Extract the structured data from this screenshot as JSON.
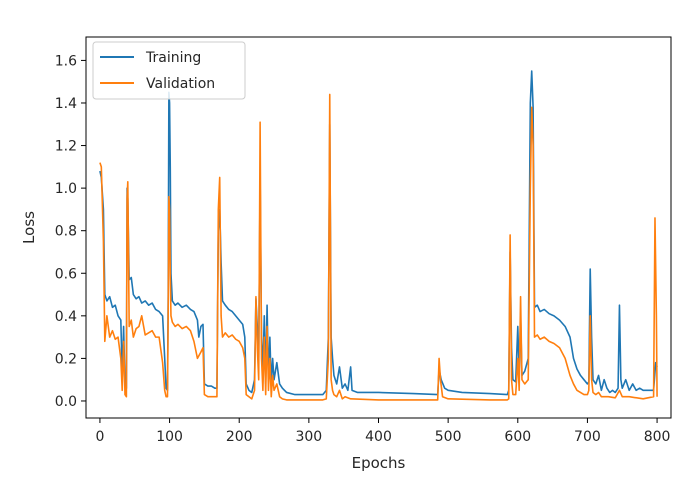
{
  "chart_data": {
    "type": "line",
    "title": "",
    "xlabel": "Epochs",
    "ylabel": "Loss",
    "xlim": [
      -20,
      820
    ],
    "ylim": [
      -0.08,
      1.71
    ],
    "xticks": [
      0,
      100,
      200,
      300,
      400,
      500,
      600,
      700,
      800
    ],
    "xtick_labels": [
      "0",
      "100",
      "200",
      "300",
      "400",
      "500",
      "600",
      "700",
      "800"
    ],
    "yticks": [
      0.0,
      0.2,
      0.4,
      0.6,
      0.8,
      1.0,
      1.2,
      1.4,
      1.6
    ],
    "ytick_labels": [
      "0.0",
      "0.2",
      "0.4",
      "0.6",
      "0.8",
      "1.0",
      "1.2",
      "1.4",
      "1.6"
    ],
    "grid": false,
    "legend_position": "top-left",
    "series": [
      {
        "name": "Training",
        "color": "#1f77b4",
        "points": [
          [
            0,
            1.08
          ],
          [
            2,
            1.05
          ],
          [
            5,
            0.9
          ],
          [
            7,
            0.5
          ],
          [
            10,
            0.47
          ],
          [
            14,
            0.49
          ],
          [
            18,
            0.44
          ],
          [
            22,
            0.45
          ],
          [
            26,
            0.4
          ],
          [
            30,
            0.38
          ],
          [
            32,
            0.12
          ],
          [
            34,
            0.35
          ],
          [
            36,
            0.07
          ],
          [
            38,
            0.06
          ],
          [
            39,
            1.0
          ],
          [
            40,
            0.95
          ],
          [
            42,
            0.57
          ],
          [
            45,
            0.58
          ],
          [
            48,
            0.5
          ],
          [
            52,
            0.48
          ],
          [
            56,
            0.49
          ],
          [
            60,
            0.46
          ],
          [
            65,
            0.47
          ],
          [
            70,
            0.45
          ],
          [
            75,
            0.46
          ],
          [
            80,
            0.43
          ],
          [
            85,
            0.42
          ],
          [
            90,
            0.4
          ],
          [
            93,
            0.2
          ],
          [
            95,
            0.06
          ],
          [
            97,
            0.05
          ],
          [
            98,
            0.5
          ],
          [
            99,
            1.45
          ],
          [
            100,
            1.4
          ],
          [
            101,
            1.1
          ],
          [
            102,
            0.6
          ],
          [
            104,
            0.47
          ],
          [
            108,
            0.45
          ],
          [
            112,
            0.46
          ],
          [
            118,
            0.44
          ],
          [
            124,
            0.45
          ],
          [
            130,
            0.43
          ],
          [
            135,
            0.42
          ],
          [
            140,
            0.38
          ],
          [
            142,
            0.3
          ],
          [
            145,
            0.35
          ],
          [
            148,
            0.36
          ],
          [
            150,
            0.08
          ],
          [
            155,
            0.07
          ],
          [
            160,
            0.07
          ],
          [
            165,
            0.06
          ],
          [
            168,
            0.06
          ],
          [
            170,
            0.8
          ],
          [
            172,
            0.9
          ],
          [
            174,
            0.65
          ],
          [
            176,
            0.47
          ],
          [
            180,
            0.45
          ],
          [
            185,
            0.43
          ],
          [
            190,
            0.42
          ],
          [
            195,
            0.4
          ],
          [
            200,
            0.38
          ],
          [
            205,
            0.36
          ],
          [
            208,
            0.3
          ],
          [
            210,
            0.08
          ],
          [
            214,
            0.05
          ],
          [
            218,
            0.04
          ],
          [
            222,
            0.1
          ],
          [
            224,
            0.48
          ],
          [
            226,
            0.35
          ],
          [
            228,
            0.2
          ],
          [
            230,
            1.05
          ],
          [
            232,
            0.3
          ],
          [
            234,
            0.15
          ],
          [
            236,
            0.4
          ],
          [
            238,
            0.08
          ],
          [
            240,
            0.45
          ],
          [
            242,
            0.1
          ],
          [
            244,
            0.3
          ],
          [
            246,
            0.08
          ],
          [
            248,
            0.2
          ],
          [
            250,
            0.1
          ],
          [
            254,
            0.18
          ],
          [
            258,
            0.08
          ],
          [
            262,
            0.06
          ],
          [
            268,
            0.04
          ],
          [
            280,
            0.03
          ],
          [
            300,
            0.03
          ],
          [
            320,
            0.03
          ],
          [
            325,
            0.05
          ],
          [
            328,
            0.3
          ],
          [
            330,
            1.3
          ],
          [
            332,
            0.3
          ],
          [
            334,
            0.2
          ],
          [
            336,
            0.12
          ],
          [
            338,
            0.1
          ],
          [
            340,
            0.08
          ],
          [
            344,
            0.16
          ],
          [
            348,
            0.06
          ],
          [
            352,
            0.08
          ],
          [
            356,
            0.05
          ],
          [
            360,
            0.16
          ],
          [
            362,
            0.05
          ],
          [
            370,
            0.04
          ],
          [
            400,
            0.04
          ],
          [
            450,
            0.035
          ],
          [
            485,
            0.03
          ],
          [
            487,
            0.15
          ],
          [
            490,
            0.1
          ],
          [
            495,
            0.06
          ],
          [
            500,
            0.05
          ],
          [
            520,
            0.04
          ],
          [
            560,
            0.035
          ],
          [
            585,
            0.03
          ],
          [
            587,
            0.05
          ],
          [
            589,
            0.7
          ],
          [
            591,
            0.25
          ],
          [
            593,
            0.1
          ],
          [
            597,
            0.09
          ],
          [
            600,
            0.35
          ],
          [
            602,
            0.12
          ],
          [
            604,
            0.4
          ],
          [
            606,
            0.12
          ],
          [
            610,
            0.14
          ],
          [
            615,
            0.2
          ],
          [
            618,
            1.4
          ],
          [
            620,
            1.55
          ],
          [
            622,
            1.38
          ],
          [
            624,
            0.44
          ],
          [
            628,
            0.45
          ],
          [
            632,
            0.42
          ],
          [
            638,
            0.43
          ],
          [
            645,
            0.41
          ],
          [
            652,
            0.4
          ],
          [
            660,
            0.38
          ],
          [
            668,
            0.35
          ],
          [
            675,
            0.3
          ],
          [
            680,
            0.2
          ],
          [
            685,
            0.15
          ],
          [
            690,
            0.12
          ],
          [
            695,
            0.1
          ],
          [
            700,
            0.08
          ],
          [
            702,
            0.09
          ],
          [
            704,
            0.62
          ],
          [
            706,
            0.3
          ],
          [
            708,
            0.1
          ],
          [
            712,
            0.08
          ],
          [
            716,
            0.12
          ],
          [
            720,
            0.05
          ],
          [
            724,
            0.1
          ],
          [
            728,
            0.06
          ],
          [
            732,
            0.04
          ],
          [
            736,
            0.05
          ],
          [
            740,
            0.04
          ],
          [
            744,
            0.06
          ],
          [
            746,
            0.45
          ],
          [
            748,
            0.1
          ],
          [
            750,
            0.06
          ],
          [
            755,
            0.1
          ],
          [
            760,
            0.05
          ],
          [
            765,
            0.08
          ],
          [
            770,
            0.05
          ],
          [
            775,
            0.06
          ],
          [
            780,
            0.05
          ],
          [
            790,
            0.05
          ],
          [
            795,
            0.05
          ],
          [
            798,
            0.18
          ],
          [
            800,
            0.16
          ]
        ]
      },
      {
        "name": "Validation",
        "color": "#ff7f0e",
        "points": [
          [
            0,
            1.12
          ],
          [
            2,
            1.1
          ],
          [
            5,
            0.75
          ],
          [
            7,
            0.28
          ],
          [
            10,
            0.4
          ],
          [
            14,
            0.3
          ],
          [
            18,
            0.33
          ],
          [
            22,
            0.29
          ],
          [
            26,
            0.3
          ],
          [
            30,
            0.2
          ],
          [
            32,
            0.05
          ],
          [
            34,
            0.28
          ],
          [
            36,
            0.03
          ],
          [
            38,
            0.02
          ],
          [
            39,
            0.95
          ],
          [
            40,
            1.03
          ],
          [
            42,
            0.35
          ],
          [
            45,
            0.38
          ],
          [
            48,
            0.3
          ],
          [
            52,
            0.34
          ],
          [
            56,
            0.35
          ],
          [
            60,
            0.4
          ],
          [
            65,
            0.31
          ],
          [
            70,
            0.32
          ],
          [
            75,
            0.33
          ],
          [
            80,
            0.3
          ],
          [
            85,
            0.3
          ],
          [
            90,
            0.18
          ],
          [
            93,
            0.05
          ],
          [
            95,
            0.02
          ],
          [
            97,
            0.02
          ],
          [
            98,
            0.4
          ],
          [
            99,
            0.96
          ],
          [
            100,
            0.9
          ],
          [
            101,
            0.6
          ],
          [
            102,
            0.4
          ],
          [
            104,
            0.37
          ],
          [
            108,
            0.35
          ],
          [
            112,
            0.36
          ],
          [
            118,
            0.34
          ],
          [
            124,
            0.35
          ],
          [
            130,
            0.33
          ],
          [
            135,
            0.28
          ],
          [
            140,
            0.2
          ],
          [
            145,
            0.23
          ],
          [
            148,
            0.25
          ],
          [
            150,
            0.03
          ],
          [
            155,
            0.02
          ],
          [
            160,
            0.02
          ],
          [
            165,
            0.02
          ],
          [
            168,
            0.02
          ],
          [
            170,
            0.9
          ],
          [
            172,
            1.05
          ],
          [
            174,
            0.4
          ],
          [
            176,
            0.3
          ],
          [
            180,
            0.32
          ],
          [
            185,
            0.3
          ],
          [
            190,
            0.31
          ],
          [
            195,
            0.29
          ],
          [
            200,
            0.28
          ],
          [
            205,
            0.25
          ],
          [
            208,
            0.2
          ],
          [
            210,
            0.03
          ],
          [
            214,
            0.02
          ],
          [
            218,
            0.01
          ],
          [
            222,
            0.05
          ],
          [
            224,
            0.49
          ],
          [
            226,
            0.25
          ],
          [
            228,
            0.1
          ],
          [
            230,
            1.31
          ],
          [
            232,
            0.2
          ],
          [
            234,
            0.05
          ],
          [
            236,
            0.3
          ],
          [
            238,
            0.03
          ],
          [
            240,
            0.35
          ],
          [
            242,
            0.05
          ],
          [
            244,
            0.2
          ],
          [
            246,
            0.02
          ],
          [
            248,
            0.12
          ],
          [
            250,
            0.05
          ],
          [
            254,
            0.08
          ],
          [
            258,
            0.02
          ],
          [
            262,
            0.01
          ],
          [
            268,
            0.005
          ],
          [
            300,
            0.005
          ],
          [
            320,
            0.005
          ],
          [
            325,
            0.01
          ],
          [
            328,
            0.2
          ],
          [
            330,
            1.44
          ],
          [
            332,
            0.1
          ],
          [
            334,
            0.05
          ],
          [
            336,
            0.03
          ],
          [
            340,
            0.02
          ],
          [
            344,
            0.05
          ],
          [
            348,
            0.01
          ],
          [
            352,
            0.02
          ],
          [
            360,
            0.01
          ],
          [
            400,
            0.005
          ],
          [
            485,
            0.005
          ],
          [
            487,
            0.2
          ],
          [
            489,
            0.1
          ],
          [
            492,
            0.02
          ],
          [
            500,
            0.01
          ],
          [
            560,
            0.005
          ],
          [
            585,
            0.005
          ],
          [
            587,
            0.01
          ],
          [
            589,
            0.78
          ],
          [
            591,
            0.1
          ],
          [
            593,
            0.03
          ],
          [
            597,
            0.03
          ],
          [
            600,
            0.2
          ],
          [
            602,
            0.05
          ],
          [
            604,
            0.49
          ],
          [
            606,
            0.1
          ],
          [
            610,
            0.08
          ],
          [
            615,
            0.1
          ],
          [
            618,
            1.0
          ],
          [
            620,
            1.38
          ],
          [
            622,
            1.2
          ],
          [
            624,
            0.3
          ],
          [
            628,
            0.31
          ],
          [
            632,
            0.29
          ],
          [
            638,
            0.3
          ],
          [
            645,
            0.28
          ],
          [
            652,
            0.27
          ],
          [
            660,
            0.25
          ],
          [
            668,
            0.2
          ],
          [
            675,
            0.12
          ],
          [
            680,
            0.08
          ],
          [
            685,
            0.05
          ],
          [
            690,
            0.04
          ],
          [
            695,
            0.03
          ],
          [
            700,
            0.03
          ],
          [
            702,
            0.05
          ],
          [
            704,
            0.4
          ],
          [
            706,
            0.1
          ],
          [
            708,
            0.04
          ],
          [
            712,
            0.03
          ],
          [
            716,
            0.04
          ],
          [
            720,
            0.02
          ],
          [
            730,
            0.02
          ],
          [
            740,
            0.015
          ],
          [
            746,
            0.05
          ],
          [
            750,
            0.02
          ],
          [
            760,
            0.02
          ],
          [
            780,
            0.01
          ],
          [
            795,
            0.02
          ],
          [
            797,
            0.86
          ],
          [
            799,
            0.4
          ],
          [
            800,
            0.02
          ]
        ]
      }
    ]
  }
}
